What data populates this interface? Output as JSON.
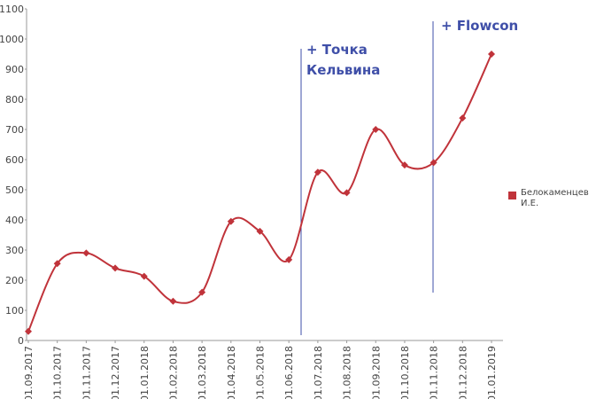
{
  "chart_data": {
    "type": "line",
    "categories": [
      "01.09.2017",
      "01.10.2017",
      "01.11.2017",
      "01.12.2017",
      "01.01.2018",
      "01.02.2018",
      "01.03.2018",
      "01.04.2018",
      "01.05.2018",
      "01.06.2018",
      "01.07.2018",
      "01.08.2018",
      "01.09.2018",
      "01.10.2018",
      "01.11.2018",
      "01.12.2018",
      "01.01.2019"
    ],
    "series": [
      {
        "name": "Белокаменцев И.Е.",
        "color": "#c0333a",
        "values": [
          30,
          255,
          290,
          240,
          213,
          130,
          160,
          395,
          362,
          268,
          558,
          490,
          700,
          582,
          590,
          738,
          950
        ]
      }
    ],
    "ylim": [
      0,
      1100
    ],
    "yticks": [
      0,
      100,
      200,
      300,
      400,
      500,
      600,
      700,
      800,
      900,
      1000,
      1100
    ],
    "grid": false,
    "legend": "right",
    "annotations": [
      {
        "lines": [
          "+ Точка",
          "Кельвина"
        ]
      },
      {
        "lines": [
          "+ Flowcon"
        ]
      }
    ]
  }
}
